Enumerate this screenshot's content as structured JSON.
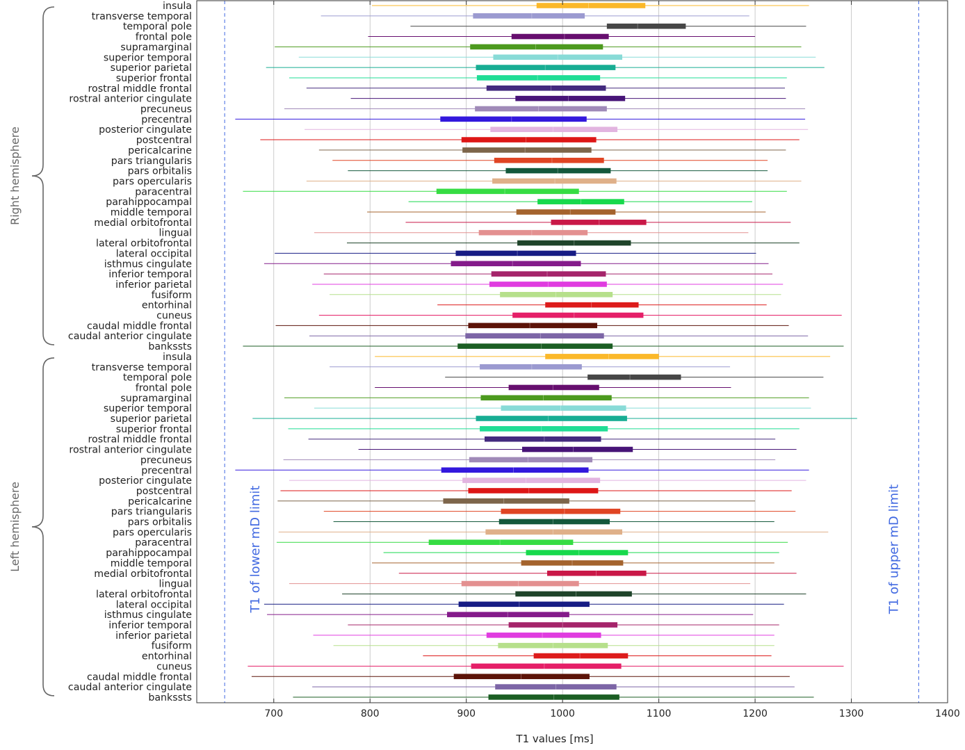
{
  "chart_data": {
    "type": "boxplot-horizontal",
    "title": "",
    "xlabel": "T1 values [ms]",
    "ylabel": "",
    "xlim": [
      620,
      1400
    ],
    "xticks": [
      700,
      800,
      900,
      1000,
      1100,
      1200,
      1300,
      1400
    ],
    "grid": "vertical",
    "groups": [
      {
        "name": "Right hemisphere",
        "regions": [
          {
            "label": "insula",
            "color": "#fbb829",
            "whisker": [
              802,
              1256
            ],
            "box": [
              973,
              1086
            ],
            "median": 1027
          },
          {
            "label": "transverse temporal",
            "color": "#9b9ad0",
            "whisker": [
              749,
              1194
            ],
            "box": [
              907,
              1023
            ],
            "median": 968
          },
          {
            "label": "temporal pole",
            "color": "#464646",
            "whisker": [
              842,
              1253
            ],
            "box": [
              1046,
              1128
            ],
            "median": 1078
          },
          {
            "label": "frontal pole",
            "color": "#660e6e",
            "whisker": [
              798,
              1200
            ],
            "box": [
              947,
              1048
            ],
            "median": 1002
          },
          {
            "label": "supramarginal",
            "color": "#4c9a1e",
            "whisker": [
              701,
              1248
            ],
            "box": [
              904,
              1042
            ],
            "median": 972
          },
          {
            "label": "superior temporal",
            "color": "#88dbd7",
            "whisker": [
              726,
              1263
            ],
            "box": [
              928,
              1062
            ],
            "median": 995
          },
          {
            "label": "superior parietal",
            "color": "#17ad93",
            "whisker": [
              692,
              1272
            ],
            "box": [
              910,
              1055
            ],
            "median": 982
          },
          {
            "label": "superior frontal",
            "color": "#1fdd95",
            "whisker": [
              716,
              1233
            ],
            "box": [
              911,
              1039
            ],
            "median": 974
          },
          {
            "label": "rostral middle frontal",
            "color": "#432a7e",
            "whisker": [
              734,
              1231
            ],
            "box": [
              921,
              1045
            ],
            "median": 988
          },
          {
            "label": "rostral anterior cingulate",
            "color": "#471477",
            "whisker": [
              780,
              1232
            ],
            "box": [
              951,
              1065
            ],
            "median": 1006
          },
          {
            "label": "precuneus",
            "color": "#a08ab8",
            "whisker": [
              711,
              1252
            ],
            "box": [
              909,
              1046
            ],
            "median": 975
          },
          {
            "label": "precentral",
            "color": "#3318dd",
            "whisker": [
              660,
              1252
            ],
            "box": [
              873,
              1025
            ],
            "median": 947
          },
          {
            "label": "posterior cingulate",
            "color": "#e2b4e0",
            "whisker": [
              732,
              1255
            ],
            "box": [
              925,
              1057
            ],
            "median": 990
          },
          {
            "label": "postcentral",
            "color": "#dd1616",
            "whisker": [
              686,
              1246
            ],
            "box": [
              895,
              1035
            ],
            "median": 962
          },
          {
            "label": "pericalcarine",
            "color": "#7d654a",
            "whisker": [
              747,
              1232
            ],
            "box": [
              896,
              1030
            ],
            "median": 961
          },
          {
            "label": "pars triangularis",
            "color": "#e04423",
            "whisker": [
              761,
              1213
            ],
            "box": [
              929,
              1043
            ],
            "median": 989
          },
          {
            "label": "pars orbitalis",
            "color": "#13583b",
            "whisker": [
              777,
              1213
            ],
            "box": [
              941,
              1050
            ],
            "median": 995
          },
          {
            "label": "pars opercularis",
            "color": "#dfb089",
            "whisker": [
              734,
              1248
            ],
            "box": [
              927,
              1056
            ],
            "median": 992
          },
          {
            "label": "paracentral",
            "color": "#36dc43",
            "whisker": [
              668,
              1233
            ],
            "box": [
              869,
              1017
            ],
            "median": 940
          },
          {
            "label": "parahippocampal",
            "color": "#17d94c",
            "whisker": [
              840,
              1197
            ],
            "box": [
              974,
              1064
            ],
            "median": 1019
          },
          {
            "label": "middle temporal",
            "color": "#a4632d",
            "whisker": [
              797,
              1211
            ],
            "box": [
              952,
              1055
            ],
            "median": 1008
          },
          {
            "label": "medial orbitofrontal",
            "color": "#c91847",
            "whisker": [
              837,
              1237
            ],
            "box": [
              988,
              1087
            ],
            "median": 1038
          },
          {
            "label": "lingual",
            "color": "#e39090",
            "whisker": [
              742,
              1193
            ],
            "box": [
              913,
              1026
            ],
            "median": 968
          },
          {
            "label": "lateral orbitofrontal",
            "color": "#1f442a",
            "whisker": [
              776,
              1246
            ],
            "box": [
              953,
              1071
            ],
            "median": 1012
          },
          {
            "label": "lateral occipital",
            "color": "#171c84",
            "whisker": [
              701,
              1201
            ],
            "box": [
              889,
              1014
            ],
            "median": 953
          },
          {
            "label": "isthmus cingulate",
            "color": "#841b8a",
            "whisker": [
              690,
              1214
            ],
            "box": [
              884,
              1019
            ],
            "median": 948
          },
          {
            "label": "inferior temporal",
            "color": "#a5246a",
            "whisker": [
              752,
              1218
            ],
            "box": [
              926,
              1045
            ],
            "median": 984
          },
          {
            "label": "inferior parietal",
            "color": "#e03ce0",
            "whisker": [
              740,
              1229
            ],
            "box": [
              924,
              1046
            ],
            "median": 985
          },
          {
            "label": "fusiform",
            "color": "#b6e08b",
            "whisker": [
              758,
              1227
            ],
            "box": [
              935,
              1052
            ],
            "median": 993
          },
          {
            "label": "entorhinal",
            "color": "#dd1c1c",
            "whisker": [
              870,
              1212
            ],
            "box": [
              982,
              1079
            ],
            "median": 1030
          },
          {
            "label": "cuneus",
            "color": "#e51f68",
            "whisker": [
              747,
              1290
            ],
            "box": [
              948,
              1084
            ],
            "median": 1012
          },
          {
            "label": "caudal middle frontal",
            "color": "#5c1308",
            "whisker": [
              702,
              1235
            ],
            "box": [
              902,
              1036
            ],
            "median": 966
          },
          {
            "label": "caudal anterior cingulate",
            "color": "#7c65a6",
            "whisker": [
              737,
              1255
            ],
            "box": [
              899,
              1043
            ],
            "median": 977
          },
          {
            "label": "bankssts",
            "color": "#1b5e23",
            "whisker": [
              668,
              1292
            ],
            "box": [
              891,
              1052
            ],
            "median": 978
          }
        ]
      },
      {
        "name": "Left hemisphere",
        "regions": [
          {
            "label": "insula",
            "color": "#fbb829",
            "whisker": [
              805,
              1278
            ],
            "box": [
              982,
              1100
            ],
            "median": 1048
          },
          {
            "label": "transverse temporal",
            "color": "#9b9ad0",
            "whisker": [
              758,
              1174
            ],
            "box": [
              914,
              1020
            ],
            "median": 968
          },
          {
            "label": "temporal pole",
            "color": "#464646",
            "whisker": [
              878,
              1271
            ],
            "box": [
              1026,
              1123
            ],
            "median": 1070
          },
          {
            "label": "frontal pole",
            "color": "#660e6e",
            "whisker": [
              805,
              1175
            ],
            "box": [
              944,
              1038
            ],
            "median": 990
          },
          {
            "label": "supramarginal",
            "color": "#4c9a1e",
            "whisker": [
              711,
              1256
            ],
            "box": [
              915,
              1051
            ],
            "median": 980
          },
          {
            "label": "superior temporal",
            "color": "#88dbd7",
            "whisker": [
              742,
              1258
            ],
            "box": [
              936,
              1066
            ],
            "median": 998
          },
          {
            "label": "superior parietal",
            "color": "#17ad93",
            "whisker": [
              678,
              1306
            ],
            "box": [
              910,
              1067
            ],
            "median": 985
          },
          {
            "label": "superior frontal",
            "color": "#1fdd95",
            "whisker": [
              715,
              1246
            ],
            "box": [
              914,
              1047
            ],
            "median": 978
          },
          {
            "label": "rostral middle frontal",
            "color": "#432a7e",
            "whisker": [
              736,
              1221
            ],
            "box": [
              919,
              1040
            ],
            "median": 981
          },
          {
            "label": "rostral anterior cingulate",
            "color": "#471477",
            "whisker": [
              788,
              1243
            ],
            "box": [
              958,
              1073
            ],
            "median": 1011
          },
          {
            "label": "precuneus",
            "color": "#a08ab8",
            "whisker": [
              710,
              1221
            ],
            "box": [
              903,
              1031
            ],
            "median": 964
          },
          {
            "label": "precentral",
            "color": "#3318dd",
            "whisker": [
              660,
              1256
            ],
            "box": [
              874,
              1027
            ],
            "median": 949
          },
          {
            "label": "posterior cingulate",
            "color": "#e2b4e0",
            "whisker": [
              716,
              1253
            ],
            "box": [
              896,
              1039
            ],
            "median": 962
          },
          {
            "label": "postcentral",
            "color": "#dd1616",
            "whisker": [
              707,
              1238
            ],
            "box": [
              902,
              1037
            ],
            "median": 965
          },
          {
            "label": "pericalcarine",
            "color": "#7d654a",
            "whisker": [
              704,
              1200
            ],
            "box": [
              876,
              1007
            ],
            "median": 939
          },
          {
            "label": "pars triangularis",
            "color": "#e04423",
            "whisker": [
              752,
              1242
            ],
            "box": [
              936,
              1060
            ],
            "median": 1002
          },
          {
            "label": "pars orbitalis",
            "color": "#13583b",
            "whisker": [
              762,
              1220
            ],
            "box": [
              934,
              1049
            ],
            "median": 990
          },
          {
            "label": "pars opercularis",
            "color": "#dfb089",
            "whisker": [
              705,
              1276
            ],
            "box": [
              920,
              1062
            ],
            "median": 990
          },
          {
            "label": "paracentral",
            "color": "#36dc43",
            "whisker": [
              703,
              1234
            ],
            "box": [
              861,
              1011
            ],
            "median": 935
          },
          {
            "label": "parahippocampal",
            "color": "#17d94c",
            "whisker": [
              814,
              1225
            ],
            "box": [
              962,
              1068
            ],
            "median": 1017
          },
          {
            "label": "middle temporal",
            "color": "#a4632d",
            "whisker": [
              802,
              1220
            ],
            "box": [
              957,
              1063
            ],
            "median": 1010
          },
          {
            "label": "medial orbitofrontal",
            "color": "#c91847",
            "whisker": [
              830,
              1243
            ],
            "box": [
              984,
              1087
            ],
            "median": 1035
          },
          {
            "label": "lingual",
            "color": "#e39090",
            "whisker": [
              716,
              1195
            ],
            "box": [
              895,
              1017
            ],
            "median": 954
          },
          {
            "label": "lateral orbitofrontal",
            "color": "#1f442a",
            "whisker": [
              771,
              1253
            ],
            "box": [
              951,
              1072
            ],
            "median": 1014
          },
          {
            "label": "lateral occipital",
            "color": "#171c84",
            "whisker": [
              690,
              1230
            ],
            "box": [
              892,
              1028
            ],
            "median": 955
          },
          {
            "label": "isthmus cingulate",
            "color": "#841b8a",
            "whisker": [
              693,
              1198
            ],
            "box": [
              880,
              1007
            ],
            "median": 943
          },
          {
            "label": "inferior temporal",
            "color": "#a5246a",
            "whisker": [
              777,
              1225
            ],
            "box": [
              944,
              1057
            ],
            "median": 1000
          },
          {
            "label": "inferior parietal",
            "color": "#e03ce0",
            "whisker": [
              741,
              1220
            ],
            "box": [
              921,
              1040
            ],
            "median": 979
          },
          {
            "label": "fusiform",
            "color": "#b6e08b",
            "whisker": [
              762,
              1220
            ],
            "box": [
              933,
              1047
            ],
            "median": 990
          },
          {
            "label": "entorhinal",
            "color": "#dd1c1c",
            "whisker": [
              855,
              1217
            ],
            "box": [
              970,
              1068
            ],
            "median": 1018
          },
          {
            "label": "cuneus",
            "color": "#e51f68",
            "whisker": [
              673,
              1292
            ],
            "box": [
              905,
              1061
            ],
            "median": 981
          },
          {
            "label": "caudal middle frontal",
            "color": "#5c1308",
            "whisker": [
              677,
              1236
            ],
            "box": [
              887,
              1028
            ],
            "median": 957
          },
          {
            "label": "caudal anterior cingulate",
            "color": "#7c65a6",
            "whisker": [
              740,
              1241
            ],
            "box": [
              930,
              1056
            ],
            "median": 993
          },
          {
            "label": "bankssts",
            "color": "#1b5e23",
            "whisker": [
              720,
              1261
            ],
            "box": [
              923,
              1059
            ],
            "median": 991
          }
        ]
      }
    ],
    "reference_lines": [
      {
        "label": "T1 of lower mD limit",
        "value": 649,
        "color": "#4169e1"
      },
      {
        "label": "T1 of upper mD limit",
        "value": 1370,
        "color": "#4169e1"
      }
    ],
    "colors": {
      "axis": "#333333",
      "grid": "#bfbfbf",
      "label_text": "#222222",
      "group_text": "#666666"
    }
  }
}
